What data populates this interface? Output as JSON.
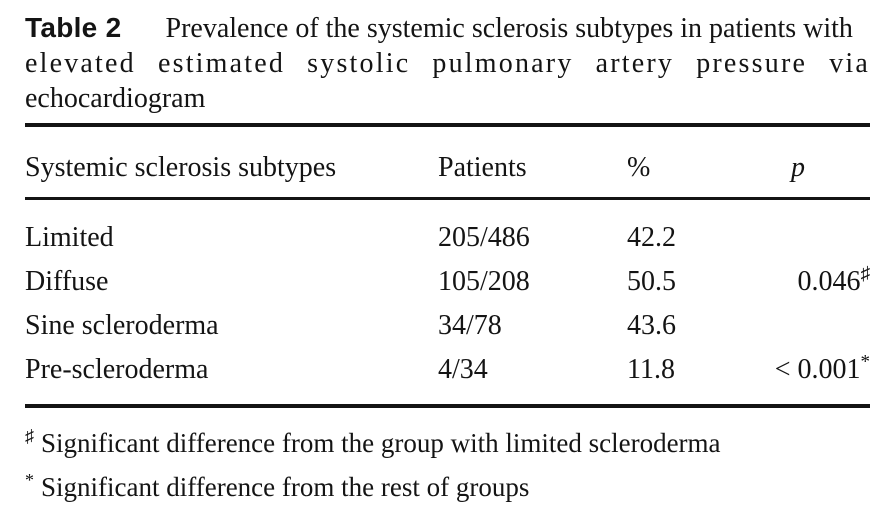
{
  "page": {
    "background": "#ffffff",
    "text_color": "#141414",
    "rule_color": "#141414"
  },
  "title": {
    "label": "Table 2",
    "line1": "Prevalence of the systemic sclerosis subtypes in patients with",
    "line2": "elevated estimated systolic pulmonary artery pressure via",
    "line3": "echocardiogram"
  },
  "table": {
    "columns": [
      "Systemic sclerosis subtypes",
      "Patients",
      "%",
      "p"
    ],
    "rows": [
      {
        "subtype": "Limited",
        "patients": "205/486",
        "percent": "42.2",
        "p": "",
        "p_sup": ""
      },
      {
        "subtype": "Diffuse",
        "patients": "105/208",
        "percent": "50.5",
        "p": "0.046",
        "p_sup": "♯"
      },
      {
        "subtype": "Sine scleroderma",
        "patients": "34/78",
        "percent": "43.6",
        "p": "",
        "p_sup": ""
      },
      {
        "subtype": "Pre-scleroderma",
        "patients": "4/34",
        "percent": "11.8",
        "p": "< 0.001",
        "p_sup": "*"
      }
    ]
  },
  "footnotes": [
    {
      "symbol": "♯",
      "text": "Significant difference from the group with limited scleroderma"
    },
    {
      "symbol": "*",
      "text": "Significant difference from the rest of groups"
    }
  ]
}
